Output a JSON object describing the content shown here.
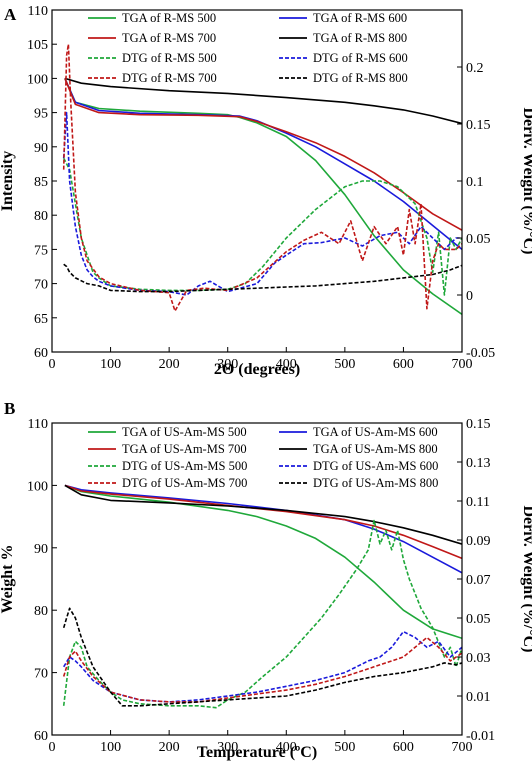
{
  "chart_data": [
    {
      "type": "line",
      "panel_label": "A",
      "xlabel": "2Θ (degrees)",
      "ylabel": "Intensity",
      "y2label": "Deriv. Weight (%/°C)",
      "xlim": [
        0,
        700
      ],
      "ylim": [
        60,
        110
      ],
      "y2lim": [
        -0.05,
        0.25
      ],
      "xticks": [
        0,
        100,
        200,
        300,
        400,
        500,
        600,
        700
      ],
      "yticks": [
        60,
        65,
        70,
        75,
        80,
        85,
        90,
        95,
        100,
        105,
        110
      ],
      "y2ticks": [
        -0.05,
        0,
        0.05,
        0.1,
        0.15,
        0.2
      ],
      "y2ticklabels": [
        "-0.05",
        "0",
        "0.05",
        "0.1",
        "0.15",
        "0.2"
      ],
      "grid": false,
      "legend_position": "top",
      "series": [
        {
          "name": "TGA of R-MS 500",
          "axis": "left",
          "color": "#1fa83a",
          "dash": "solid",
          "x": [
            22,
            40,
            80,
            150,
            250,
            300,
            320,
            350,
            400,
            450,
            500,
            550,
            600,
            650,
            700
          ],
          "y": [
            100,
            96.5,
            95.6,
            95.2,
            94.9,
            94.7,
            94.3,
            93.5,
            91.5,
            88,
            83,
            77,
            72,
            68.5,
            65.5
          ]
        },
        {
          "name": "TGA of R-MS 600",
          "axis": "left",
          "color": "#1a1adb",
          "dash": "solid",
          "x": [
            22,
            40,
            80,
            150,
            250,
            320,
            350,
            400,
            450,
            500,
            550,
            600,
            650,
            700
          ],
          "y": [
            100,
            96.5,
            95.3,
            94.9,
            94.7,
            94.5,
            93.8,
            92,
            90,
            87.5,
            85,
            82,
            78.5,
            75
          ]
        },
        {
          "name": "TGA of R-MS 700",
          "axis": "left",
          "color": "#c01818",
          "dash": "solid",
          "x": [
            22,
            40,
            80,
            150,
            250,
            320,
            350,
            400,
            450,
            500,
            550,
            600,
            650,
            700
          ],
          "y": [
            100,
            96.2,
            95.0,
            94.7,
            94.6,
            94.4,
            93.7,
            92.2,
            90.6,
            88.6,
            86.2,
            83.3,
            80.2,
            77.8
          ]
        },
        {
          "name": "TGA of R-MS 800",
          "axis": "left",
          "color": "#000000",
          "dash": "solid",
          "x": [
            22,
            50,
            100,
            200,
            300,
            400,
            500,
            550,
            600,
            650,
            700
          ],
          "y": [
            100,
            99.3,
            98.8,
            98.2,
            97.8,
            97.2,
            96.5,
            96,
            95.4,
            94.5,
            93.4
          ]
        },
        {
          "name": "DTG of R-MS 500",
          "axis": "right",
          "color": "#1fa83a",
          "dash": "dashed",
          "x": [
            20,
            30,
            40,
            50,
            60,
            70,
            80,
            100,
            150,
            200,
            250,
            300,
            330,
            360,
            400,
            450,
            500,
            530,
            560,
            590,
            620,
            640,
            650,
            660,
            670,
            680,
            690,
            700
          ],
          "y": [
            0.12,
            0.11,
            0.08,
            0.05,
            0.035,
            0.02,
            0.015,
            0.008,
            0.005,
            0.004,
            0.004,
            0.005,
            0.01,
            0.025,
            0.05,
            0.075,
            0.095,
            0.1,
            0.1,
            0.095,
            0.08,
            0.05,
            0.02,
            0.055,
            0,
            0.05,
            0.04,
            0.05
          ]
        },
        {
          "name": "DTG of R-MS 600",
          "axis": "right",
          "color": "#1a1adb",
          "dash": "dashed",
          "x": [
            20,
            25,
            30,
            40,
            50,
            60,
            70,
            80,
            100,
            150,
            200,
            230,
            250,
            270,
            300,
            350,
            380,
            400,
            430,
            460,
            500,
            530,
            560,
            590,
            610,
            630,
            650,
            670,
            690,
            700
          ],
          "y": [
            0.12,
            0.16,
            0.1,
            0.06,
            0.035,
            0.022,
            0.016,
            0.012,
            0.008,
            0.004,
            0.003,
            0.0,
            0.008,
            0.012,
            0.003,
            0.01,
            0.028,
            0.035,
            0.045,
            0.046,
            0.05,
            0.043,
            0.052,
            0.055,
            0.045,
            0.06,
            0.05,
            0.04,
            0.05,
            0.05
          ]
        },
        {
          "name": "DTG of R-MS 700",
          "axis": "right",
          "color": "#c01818",
          "dash": "dashed",
          "x": [
            20,
            25,
            28,
            32,
            40,
            50,
            60,
            80,
            100,
            150,
            200,
            210,
            230,
            260,
            300,
            350,
            400,
            430,
            460,
            490,
            510,
            530,
            550,
            570,
            590,
            600,
            610,
            620,
            630,
            640,
            650,
            660,
            670,
            690,
            700
          ],
          "y": [
            0.11,
            0.21,
            0.22,
            0.17,
            0.09,
            0.05,
            0.03,
            0.016,
            0.01,
            0.004,
            0.002,
            -0.014,
            0.004,
            0.006,
            0.004,
            0.015,
            0.038,
            0.048,
            0.055,
            0.045,
            0.065,
            0.03,
            0.06,
            0.045,
            0.06,
            0.035,
            0.075,
            0.045,
            0.08,
            -0.012,
            0.03,
            0.045,
            0.04,
            0.04,
            0.045
          ]
        },
        {
          "name": "DTG of R-MS 800",
          "axis": "right",
          "color": "#000000",
          "dash": "dashed",
          "x": [
            20,
            25,
            30,
            40,
            60,
            80,
            100,
            150,
            200,
            250,
            300,
            350,
            400,
            450,
            500,
            550,
            600,
            650,
            680,
            700
          ],
          "y": [
            0.027,
            0.025,
            0.02,
            0.015,
            0.01,
            0.008,
            0.004,
            0.003,
            0.003,
            0.004,
            0.005,
            0.006,
            0.007,
            0.008,
            0.01,
            0.012,
            0.015,
            0.018,
            0.022,
            0.026
          ]
        }
      ]
    },
    {
      "type": "line",
      "panel_label": "B",
      "xlabel": "Temperature (ºC)",
      "ylabel": "Weight %",
      "y2label": "Deriv. Weight (%/°C)",
      "xlim": [
        0,
        700
      ],
      "ylim": [
        60,
        110
      ],
      "y2lim": [
        -0.01,
        0.15
      ],
      "xticks": [
        0,
        100,
        200,
        300,
        400,
        500,
        600,
        700
      ],
      "yticks": [
        60,
        70,
        80,
        90,
        100,
        110
      ],
      "y2ticks": [
        -0.01,
        0.01,
        0.03,
        0.05,
        0.07,
        0.09,
        0.11,
        0.13,
        0.15
      ],
      "y2ticklabels": [
        "-0.01",
        "0.01",
        "0.03",
        "0.05",
        "0.07",
        "0.09",
        "0.11",
        "0.13",
        "0.15"
      ],
      "grid": false,
      "legend_position": "top",
      "series": [
        {
          "name": "TGA of US-Am-MS 500",
          "axis": "left",
          "color": "#1fa83a",
          "dash": "solid",
          "x": [
            22,
            50,
            100,
            200,
            300,
            350,
            400,
            450,
            500,
            550,
            600,
            650,
            700
          ],
          "y": [
            100,
            99,
            98.3,
            97.3,
            96,
            95,
            93.5,
            91.5,
            88.5,
            84.5,
            80,
            77,
            75.5
          ]
        },
        {
          "name": "TGA of US-Am-MS 600",
          "axis": "left",
          "color": "#1a1adb",
          "dash": "solid",
          "x": [
            22,
            50,
            100,
            200,
            300,
            400,
            500,
            550,
            600,
            650,
            700
          ],
          "y": [
            100,
            99.3,
            98.8,
            98,
            97.1,
            96,
            94.5,
            93,
            91,
            88.5,
            86
          ]
        },
        {
          "name": "TGA of US-Am-MS 700",
          "axis": "left",
          "color": "#c01818",
          "dash": "solid",
          "x": [
            22,
            50,
            100,
            200,
            300,
            400,
            500,
            550,
            600,
            650,
            700
          ],
          "y": [
            100,
            99.1,
            98.6,
            97.8,
            96.8,
            95.8,
            94.5,
            93.5,
            92,
            90.2,
            88.3
          ]
        },
        {
          "name": "TGA of US-Am-MS 800",
          "axis": "left",
          "color": "#000000",
          "dash": "solid",
          "x": [
            22,
            50,
            100,
            200,
            300,
            400,
            500,
            550,
            600,
            650,
            700
          ],
          "y": [
            100,
            98.5,
            97.6,
            97.2,
            96.7,
            96,
            95,
            94.2,
            93.2,
            92,
            90.6
          ]
        },
        {
          "name": "DTG of US-Am-MS 500",
          "axis": "right",
          "color": "#1fa83a",
          "dash": "dashed",
          "x": [
            20,
            30,
            40,
            50,
            60,
            80,
            100,
            120,
            150,
            200,
            250,
            280,
            300,
            330,
            360,
            400,
            430,
            460,
            490,
            520,
            540,
            550,
            560,
            570,
            580,
            590,
            600,
            610,
            630,
            650,
            670,
            680,
            690,
            700
          ],
          "y": [
            0.005,
            0.03,
            0.038,
            0.035,
            0.025,
            0.018,
            0.012,
            0.008,
            0.006,
            0.005,
            0.005,
            0.004,
            0.008,
            0.012,
            0.02,
            0.03,
            0.04,
            0.05,
            0.062,
            0.075,
            0.085,
            0.1,
            0.088,
            0.095,
            0.085,
            0.095,
            0.08,
            0.07,
            0.055,
            0.045,
            0.03,
            0.035,
            0.025,
            0.035
          ]
        },
        {
          "name": "DTG of US-Am-MS 600",
          "axis": "right",
          "color": "#1a1adb",
          "dash": "dashed",
          "x": [
            20,
            30,
            40,
            50,
            70,
            100,
            150,
            200,
            250,
            300,
            350,
            400,
            450,
            500,
            540,
            560,
            580,
            600,
            620,
            640,
            660,
            680,
            700
          ],
          "y": [
            0.025,
            0.03,
            0.028,
            0.025,
            0.018,
            0.012,
            0.008,
            0.007,
            0.008,
            0.01,
            0.012,
            0.015,
            0.018,
            0.022,
            0.028,
            0.03,
            0.035,
            0.043,
            0.04,
            0.035,
            0.038,
            0.03,
            0.035
          ]
        },
        {
          "name": "DTG of US-Am-MS 700",
          "axis": "right",
          "color": "#c01818",
          "dash": "dashed",
          "x": [
            20,
            30,
            40,
            50,
            70,
            100,
            150,
            200,
            250,
            300,
            350,
            400,
            450,
            500,
            550,
            600,
            640,
            660,
            680,
            700
          ],
          "y": [
            0.02,
            0.03,
            0.033,
            0.028,
            0.02,
            0.012,
            0.008,
            0.007,
            0.007,
            0.009,
            0.011,
            0.013,
            0.016,
            0.02,
            0.025,
            0.03,
            0.04,
            0.035,
            0.028,
            0.032
          ]
        },
        {
          "name": "DTG of US-Am-MS 800",
          "axis": "right",
          "color": "#000000",
          "dash": "dashed",
          "x": [
            20,
            25,
            30,
            40,
            50,
            70,
            100,
            120,
            150,
            200,
            300,
            400,
            450,
            500,
            550,
            600,
            650,
            670,
            690,
            700
          ],
          "y": [
            0.045,
            0.05,
            0.055,
            0.05,
            0.04,
            0.025,
            0.012,
            0.005,
            0.005,
            0.006,
            0.008,
            0.01,
            0.013,
            0.017,
            0.02,
            0.022,
            0.025,
            0.027,
            0.026,
            0.027
          ]
        }
      ]
    }
  ]
}
